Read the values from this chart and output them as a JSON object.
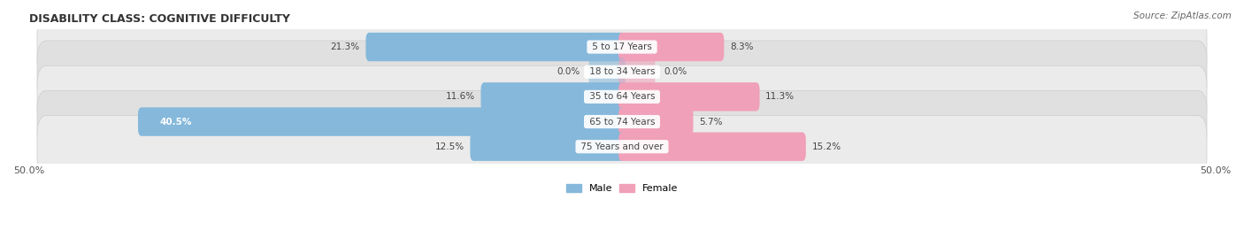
{
  "title": "DISABILITY CLASS: COGNITIVE DIFFICULTY",
  "source": "Source: ZipAtlas.com",
  "categories": [
    "5 to 17 Years",
    "18 to 34 Years",
    "35 to 64 Years",
    "65 to 74 Years",
    "75 Years and over"
  ],
  "male_values": [
    21.3,
    0.0,
    11.6,
    40.5,
    12.5
  ],
  "female_values": [
    8.3,
    0.0,
    11.3,
    5.7,
    15.2
  ],
  "male_color": "#85b8db",
  "female_color": "#f0a0b8",
  "row_bg_color_odd": "#ebebeb",
  "row_bg_color_even": "#e0e0e0",
  "max_val": 50.0,
  "label_color": "#444444",
  "title_color": "#333333",
  "title_fontsize": 9,
  "bar_fontsize": 7.5,
  "legend_fontsize": 8,
  "source_fontsize": 7.5,
  "figsize": [
    14.06,
    2.69
  ],
  "dpi": 100
}
